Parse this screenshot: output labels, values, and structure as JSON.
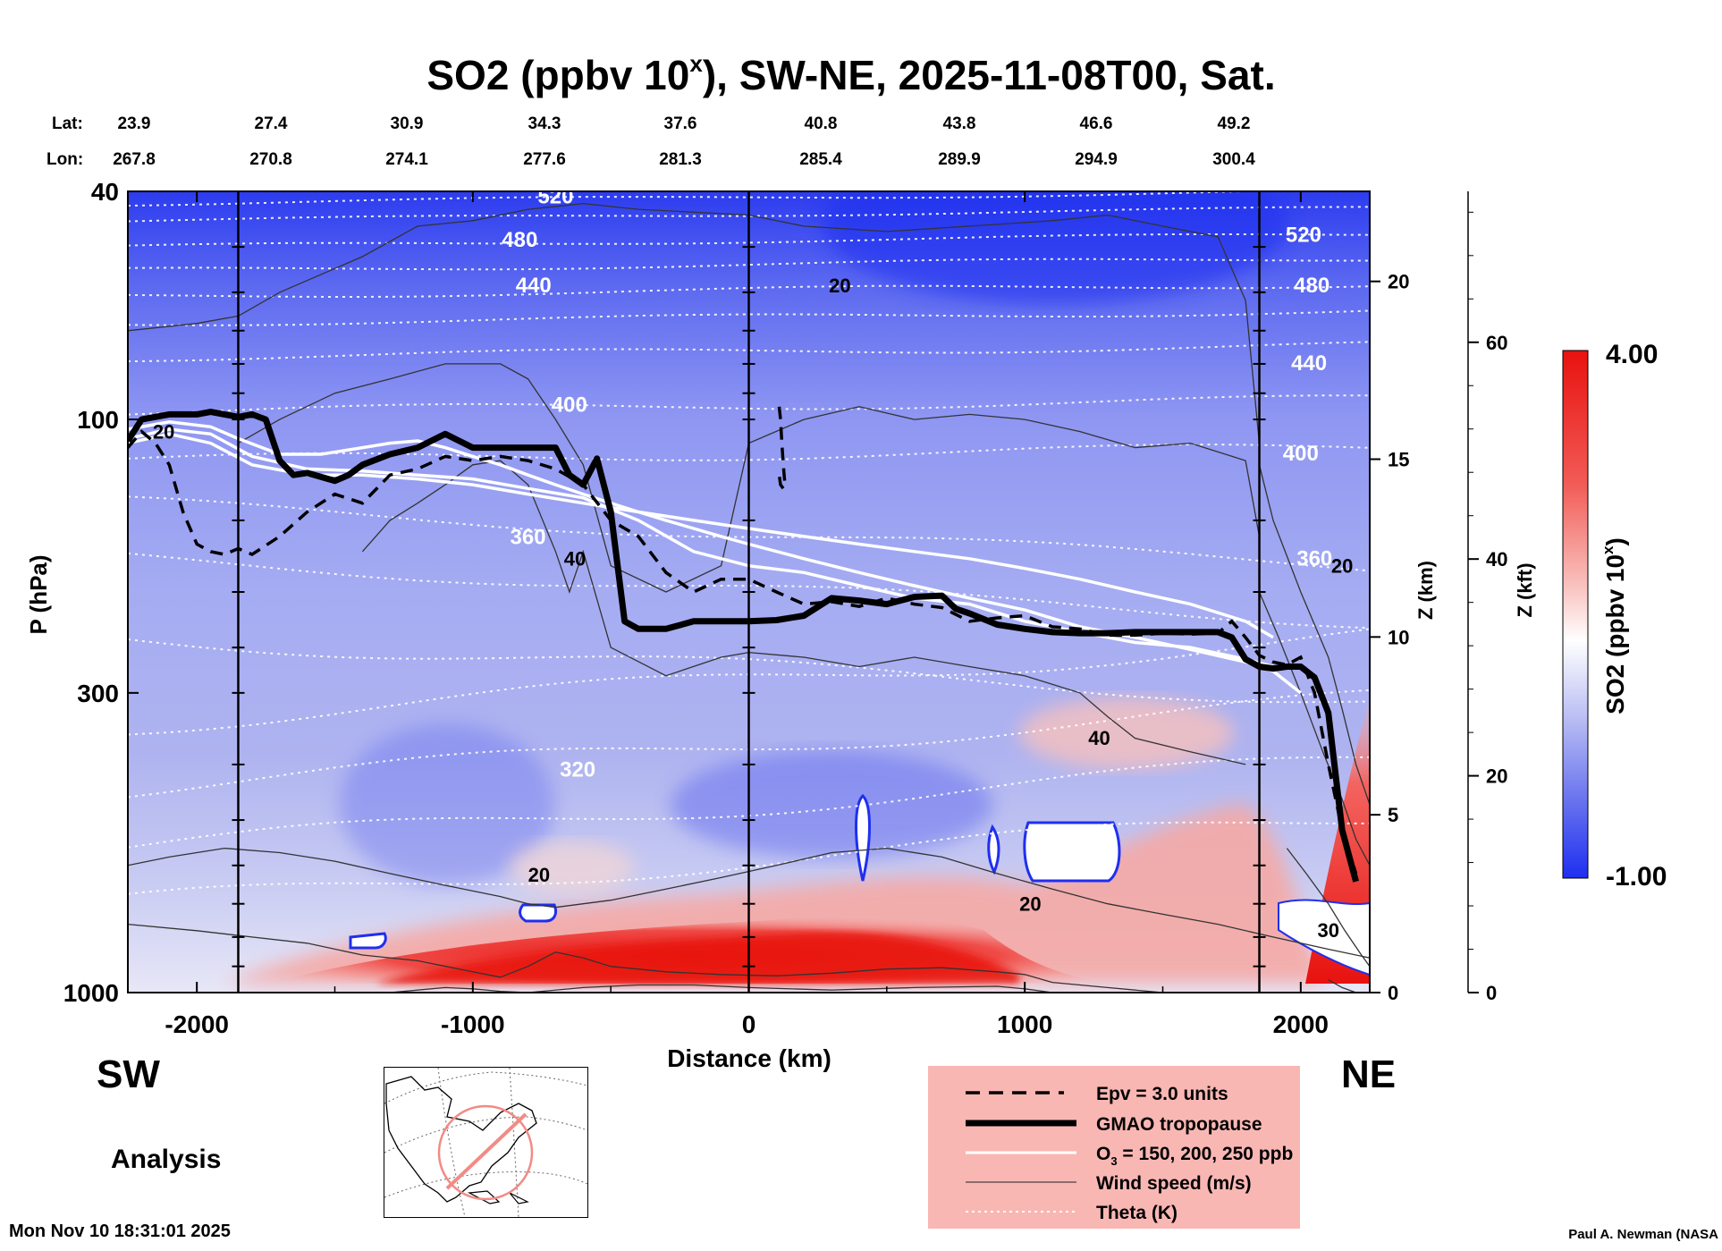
{
  "title_prefix": "SO2 (ppbv 10",
  "title_exp": "x",
  "title_suffix": "), SW-NE, 2025-11-08T00, Sat.",
  "lat_label": "Lat:",
  "lon_label": "Lon:",
  "lat_values": [
    "23.9",
    "27.4",
    "30.9",
    "34.3",
    "37.6",
    "40.8",
    "43.8",
    "46.6",
    "49.2"
  ],
  "lon_values": [
    "267.8",
    "270.8",
    "274.1",
    "277.6",
    "281.3",
    "285.4",
    "289.9",
    "294.9",
    "300.4"
  ],
  "direction_left": "SW",
  "direction_right": "NE",
  "analysis_label": "Analysis",
  "footer_date": "Mon Nov 10 18:31:01 2025",
  "footer_credit": "Paul A. Newman (NASA",
  "colors": {
    "high": "#e8120f",
    "low": "#1e2ff0",
    "mid": "#ffffff",
    "legend_bg": "#f9b7b4",
    "isentrope": "#ffffff",
    "wind": "#333333"
  },
  "legend": [
    {
      "label": "Epv = 3.0 units",
      "style": "dashed"
    },
    {
      "label": "GMAO tropopause",
      "style": "thick"
    },
    {
      "label": "O3 = 150, 200, 250 ppb",
      "style": "white"
    },
    {
      "label": "Wind speed (m/s)",
      "style": "thin"
    },
    {
      "label": "Theta (K)",
      "style": "dotted"
    }
  ],
  "legend_o3_prefix": "O",
  "legend_o3_sub": "3",
  "legend_o3_suffix": " = 150, 200, 250 ppb",
  "colorbar": {
    "max_label": "4.00",
    "min_label": "-1.00",
    "title_prefix": "SO2 (ppbv 10",
    "title_exp": "x",
    "title_suffix": ")"
  },
  "chart_data": {
    "type": "heatmap",
    "title": "SO2 (ppbv 10^x), SW-NE, 2025-11-08T00, Sat.",
    "xlabel": "Distance (km)",
    "ylabel": "P (hPa)",
    "right_axis_labels": [
      "Z (km)",
      "Z (kft)"
    ],
    "xlim": [
      -2250,
      2250
    ],
    "ylim": [
      1000,
      40
    ],
    "y_scale": "log",
    "x_ticks": [
      -2000,
      -1000,
      0,
      1000,
      2000
    ],
    "y_ticks": [
      1000,
      300,
      100,
      40
    ],
    "z_km_ticks": [
      0,
      5,
      10,
      15,
      20
    ],
    "z_kft_ticks": [
      0,
      20,
      40,
      60
    ],
    "vertical_lines_km": [
      -1850,
      0,
      1850
    ],
    "colorbar_range": [
      -1.0,
      4.0
    ],
    "tropopause": {
      "x": [
        -2250,
        -2200,
        -2100,
        -2000,
        -1950,
        -1900,
        -1850,
        -1800,
        -1750,
        -1700,
        -1650,
        -1600,
        -1500,
        -1450,
        -1400,
        -1300,
        -1200,
        -1100,
        -1000,
        -900,
        -800,
        -700,
        -650,
        -600,
        -550,
        -500,
        -450,
        -400,
        -300,
        -200,
        -100,
        0,
        100,
        200,
        300,
        400,
        500,
        600,
        700,
        750,
        800,
        900,
        1000,
        1100,
        1200,
        1300,
        1400,
        1500,
        1600,
        1700,
        1750,
        1800,
        1850,
        1900,
        1950,
        2000,
        2050,
        2100,
        2150,
        2200
      ],
      "p": [
        109,
        100,
        98,
        98,
        97,
        98,
        99,
        98,
        100,
        118,
        125,
        124,
        128,
        125,
        120,
        115,
        112,
        106,
        112,
        112,
        112,
        112,
        125,
        130,
        117,
        145,
        225,
        232,
        232,
        225,
        225,
        225,
        224,
        220,
        205,
        207,
        210,
        204,
        203,
        214,
        218,
        228,
        232,
        235,
        236,
        236,
        235,
        235,
        235,
        235,
        240,
        262,
        270,
        272,
        270,
        270,
        282,
        325,
        520,
        640
      ]
    },
    "epv_3pvu_curves": [
      {
        "x": [
          -2250,
          -2200,
          -2150,
          -2100,
          -2050,
          -2000,
          -1950,
          -1900,
          -1850,
          -1800,
          -1700,
          -1600,
          -1500,
          -1400,
          -1300,
          -1200,
          -1100,
          -1000,
          -900,
          -800,
          -700,
          -600,
          -500,
          -400,
          -300,
          -200,
          -100,
          0,
          100,
          200,
          300,
          400,
          500,
          600,
          700,
          800,
          900,
          1000,
          1100,
          1200,
          1300,
          1400,
          1500,
          1600,
          1700,
          1750,
          1800,
          1850,
          1900,
          1950,
          2000,
          2050,
          2100,
          2150,
          2200
        ],
        "p": [
          112,
          105,
          110,
          120,
          145,
          165,
          170,
          172,
          168,
          172,
          160,
          145,
          135,
          140,
          125,
          122,
          116,
          118,
          116,
          118,
          122,
          130,
          150,
          160,
          185,
          200,
          190,
          190,
          200,
          210,
          208,
          212,
          205,
          210,
          213,
          225,
          222,
          220,
          230,
          232,
          238,
          238,
          236,
          237,
          236,
          225,
          240,
          258,
          265,
          268,
          260,
          300,
          400,
          520,
          620
        ]
      },
      {
        "x": [
          110,
          115,
          120,
          125,
          130,
          125,
          115,
          110
        ],
        "p": [
          95,
          100,
          110,
          120,
          128,
          132,
          130,
          125
        ]
      }
    ],
    "ozone_contours_ppb": [
      {
        "value": 150,
        "x": [
          -2250,
          -2100,
          -1950,
          -1800,
          -1600,
          -1400,
          -1200,
          -1000,
          -800,
          -600,
          -400,
          -200,
          0,
          200,
          400,
          600,
          800,
          1000,
          1200,
          1400,
          1600,
          1800,
          1900
        ],
        "p": [
          110,
          106,
          110,
          120,
          125,
          125,
          127,
          130,
          135,
          140,
          145,
          150,
          155,
          160,
          165,
          170,
          175,
          182,
          190,
          200,
          210,
          225,
          240
        ]
      },
      {
        "value": 200,
        "x": [
          -2250,
          -2100,
          -1950,
          -1800,
          -1600,
          -1400,
          -1200,
          -1000,
          -800,
          -600,
          -400,
          -200,
          0,
          200,
          400,
          600,
          800,
          1000,
          1200,
          1400,
          1600,
          1800,
          1900
        ],
        "p": [
          108,
          104,
          106,
          116,
          122,
          123,
          125,
          127,
          132,
          137,
          150,
          170,
          180,
          185,
          195,
          205,
          210,
          225,
          235,
          245,
          250,
          262,
          270
        ]
      },
      {
        "value": 250,
        "x": [
          -2250,
          -2100,
          -1950,
          -1850,
          -1700,
          -1550,
          -1400,
          -1300,
          -1200,
          -1100,
          -1000,
          -900,
          -800,
          -700,
          -600,
          -500,
          -400,
          -300,
          -200,
          -100,
          0,
          200,
          400,
          600,
          800,
          1000,
          1200,
          1400,
          1600,
          1800,
          1900,
          2000
        ],
        "p": [
          104,
          101,
          103,
          108,
          115,
          115,
          112,
          110,
          109,
          112,
          116,
          120,
          125,
          130,
          135,
          140,
          145,
          150,
          155,
          160,
          165,
          175,
          185,
          195,
          205,
          215,
          230,
          240,
          252,
          265,
          275,
          300
        ]
      }
    ],
    "theta_labels_K": [
      {
        "value": 520,
        "x": -700,
        "p": 42
      },
      {
        "value": 480,
        "x": -830,
        "p": 50
      },
      {
        "value": 440,
        "x": -780,
        "p": 60
      },
      {
        "value": 400,
        "x": -650,
        "p": 97
      },
      {
        "value": 360,
        "x": -800,
        "p": 165
      },
      {
        "value": 320,
        "x": -620,
        "p": 420
      },
      {
        "value": 520,
        "x": 2010,
        "p": 49
      },
      {
        "value": 480,
        "x": 2040,
        "p": 60
      },
      {
        "value": 440,
        "x": 2030,
        "p": 82
      },
      {
        "value": 400,
        "x": 2000,
        "p": 118
      },
      {
        "value": 360,
        "x": 2050,
        "p": 180
      }
    ],
    "wind_speed_labels_ms": [
      {
        "value": 20,
        "x": 330,
        "p": 60
      },
      {
        "value": 20,
        "x": -2120,
        "p": 108
      },
      {
        "value": 40,
        "x": -630,
        "p": 180
      },
      {
        "value": 40,
        "x": 1270,
        "p": 370
      },
      {
        "value": 20,
        "x": -760,
        "p": 640
      },
      {
        "value": 20,
        "x": 1020,
        "p": 720
      },
      {
        "value": 20,
        "x": 2150,
        "p": 185
      },
      {
        "value": 30,
        "x": 2100,
        "p": 800
      }
    ],
    "so2_feature_regions": [
      {
        "desc": "boundary-layer maximum",
        "x": [
          -1800,
          1700
        ],
        "p": [
          720,
          1000
        ],
        "value_log10": 3.5
      },
      {
        "desc": "north-east column high",
        "x": [
          1900,
          2250
        ],
        "p": [
          300,
          1000
        ],
        "value_log10": 3.0
      },
      {
        "desc": "upper stratosphere low",
        "x": [
          -2250,
          2250
        ],
        "p": [
          40,
          60
        ],
        "value_log10": -0.8
      }
    ]
  }
}
